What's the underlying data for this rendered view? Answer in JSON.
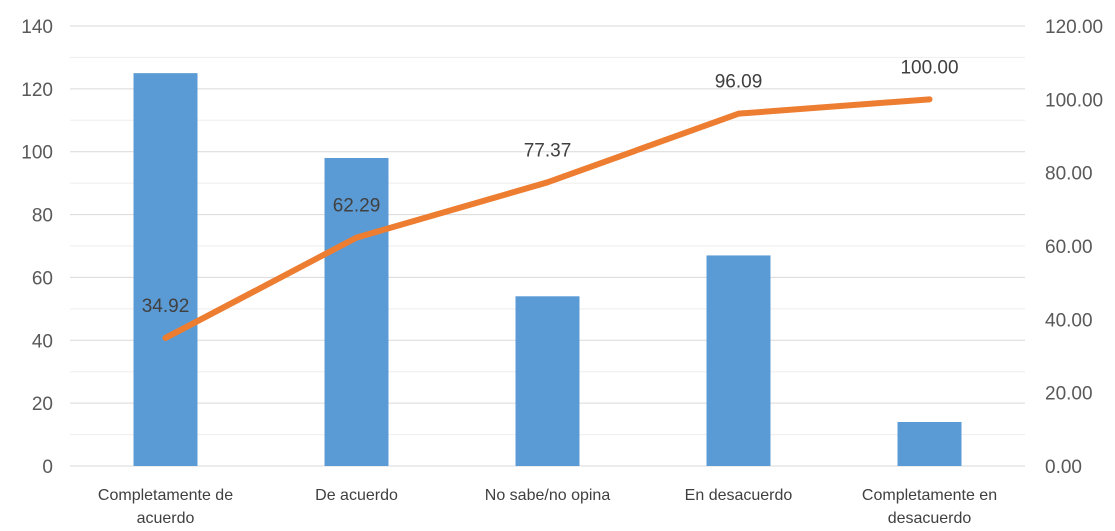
{
  "chart_data": {
    "type": "bar+line",
    "categories": [
      "Completamente de acuerdo",
      "De acuerdo",
      "No sabe/no opina",
      "En desacuerdo",
      "Completamente en desacuerdo"
    ],
    "category_lines": [
      [
        "Completamente de",
        "acuerdo"
      ],
      [
        "De acuerdo"
      ],
      [
        "No sabe/no opina"
      ],
      [
        "En desacuerdo"
      ],
      [
        "Completamente en",
        "desacuerdo"
      ]
    ],
    "series": [
      {
        "type": "bar",
        "axis": "left",
        "values": [
          125,
          98,
          54,
          67,
          14
        ]
      },
      {
        "type": "line",
        "axis": "right",
        "values": [
          34.92,
          62.29,
          77.37,
          96.09,
          100.0
        ],
        "data_labels": [
          "34.92",
          "62.29",
          "77.37",
          "96.09",
          "100.00"
        ]
      }
    ],
    "left_axis": {
      "ylim": [
        0,
        140
      ],
      "ticks": [
        0,
        20,
        40,
        60,
        80,
        100,
        120,
        140
      ],
      "tick_labels": [
        "0",
        "20",
        "40",
        "60",
        "80",
        "100",
        "120",
        "140"
      ]
    },
    "right_axis": {
      "ylim": [
        0,
        120
      ],
      "ticks": [
        0,
        20,
        40,
        60,
        80,
        100,
        120
      ],
      "tick_labels": [
        "0.00",
        "20.00",
        "40.00",
        "60.00",
        "80.00",
        "100.00",
        "120.00"
      ]
    },
    "title": "",
    "xlabel": "",
    "ylabel": "",
    "grid": true,
    "colors": {
      "bar": "#5b9bd5",
      "line": "#ed7d31"
    }
  }
}
